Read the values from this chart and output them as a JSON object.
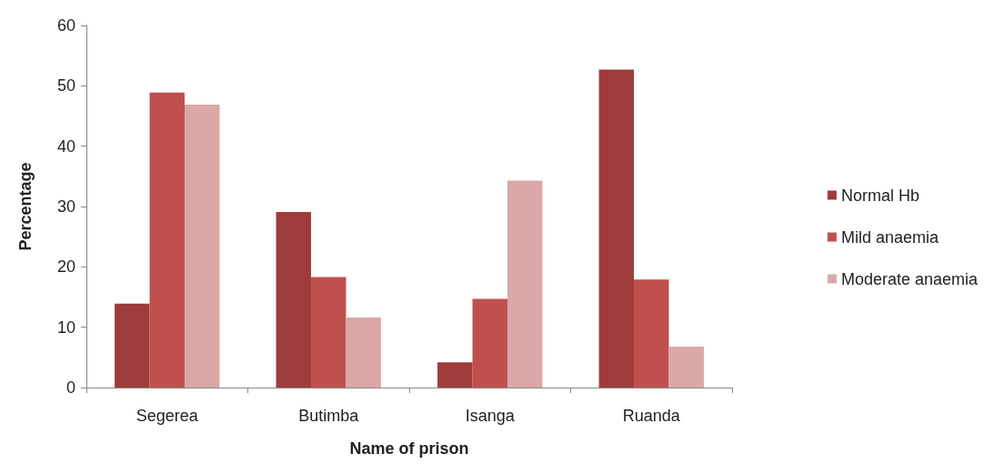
{
  "chart_data": {
    "type": "bar",
    "xlabel": "Name of prison",
    "ylabel": "Percentage",
    "categories": [
      "Segerea",
      "Butimba",
      "Isanga",
      "Ruanda"
    ],
    "series": [
      {
        "name": "Normal Hb",
        "color": "#9e3c3b",
        "values": [
          13.9,
          29.1,
          4.2,
          52.7
        ]
      },
      {
        "name": "Mild anaemia",
        "color": "#c0504d",
        "values": [
          48.9,
          18.3,
          14.7,
          17.9
        ]
      },
      {
        "name": "Moderate anaemia",
        "color": "#d9a8a7",
        "values": [
          46.9,
          11.6,
          34.3,
          6.8
        ]
      }
    ],
    "ylim": [
      0,
      60
    ],
    "yticks": [
      0,
      10,
      20,
      30,
      40,
      50,
      60
    ],
    "grid": false,
    "legend": "right"
  }
}
